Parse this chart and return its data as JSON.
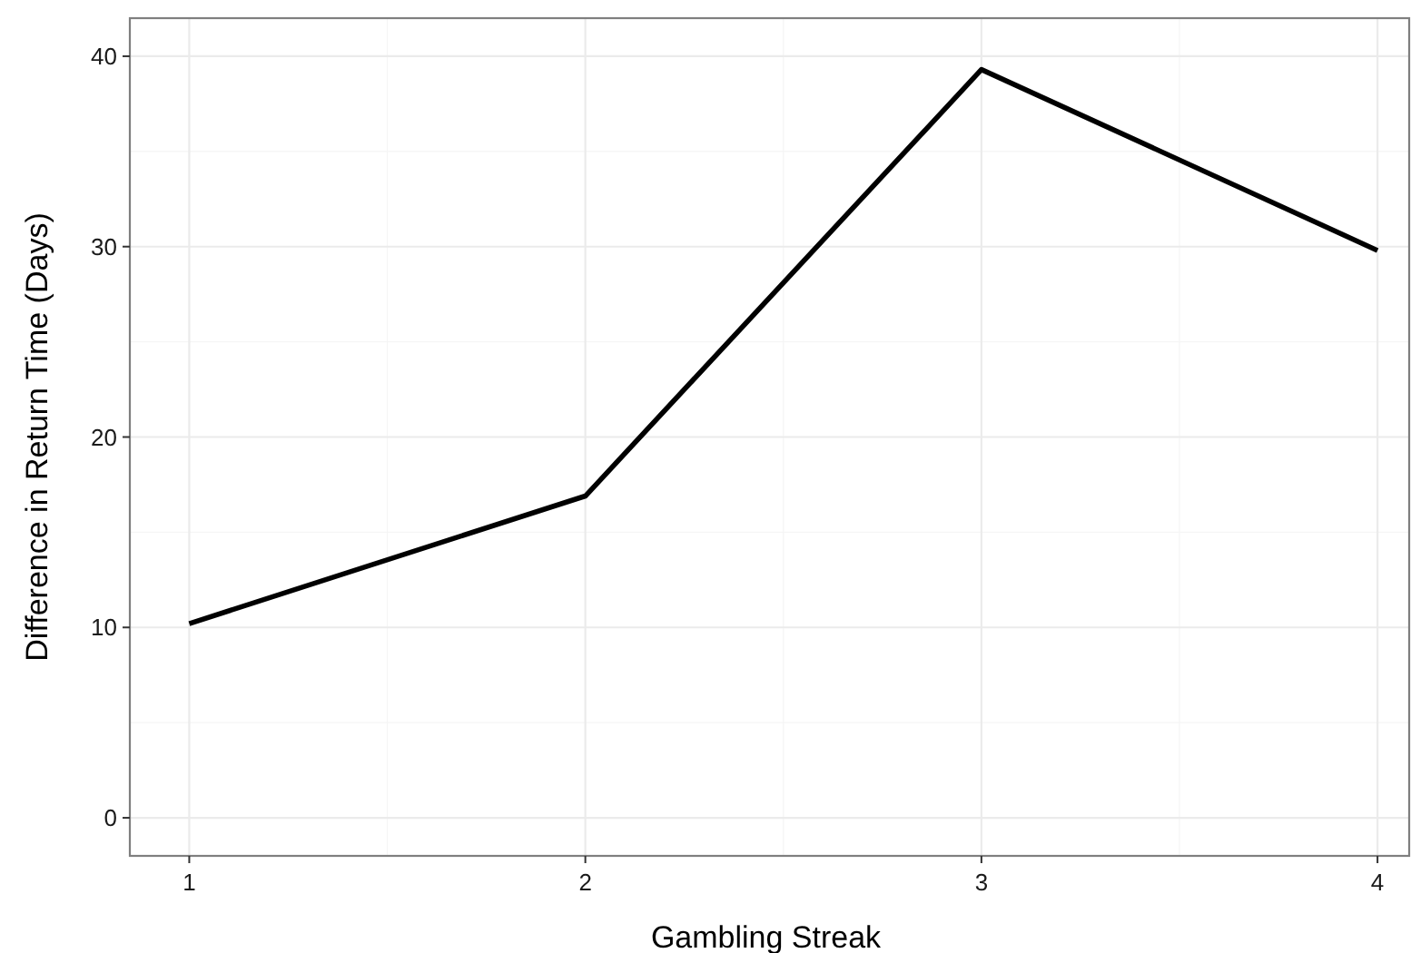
{
  "chart_data": {
    "type": "line",
    "xlabel": "Gambling Streak",
    "ylabel": "Difference in Return Time (Days)",
    "x": [
      1,
      2,
      3,
      4
    ],
    "series": [
      {
        "color": "#000000",
        "values": [
          10.2,
          16.9,
          39.3,
          29.8
        ]
      }
    ],
    "xlim": [
      0.85,
      4.08
    ],
    "xticks": [
      1,
      2,
      3,
      4
    ],
    "ylim": [
      -2,
      42
    ],
    "yticks": [
      0,
      10,
      20,
      30,
      40
    ],
    "grid": true,
    "marker": "none",
    "line_style": "solid"
  }
}
